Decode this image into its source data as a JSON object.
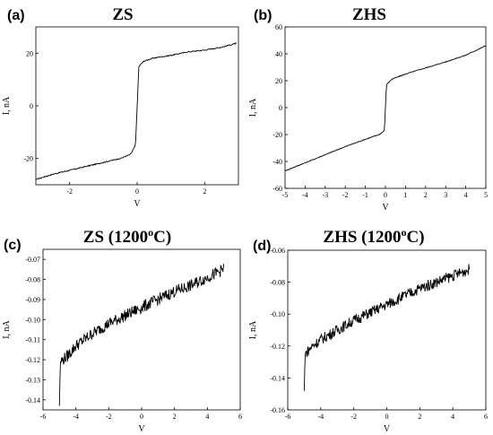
{
  "figure": {
    "panels": [
      {
        "label": "(a)",
        "title": "ZS",
        "title_sup": "",
        "title_tail": ""
      },
      {
        "label": "(b)",
        "title": "ZHS",
        "title_sup": "",
        "title_tail": ""
      },
      {
        "label": "(c)",
        "title": "ZS (1200",
        "title_sup": "o",
        "title_tail": "C)"
      },
      {
        "label": "(d)",
        "title": "ZHS (1200",
        "title_sup": "o",
        "title_tail": "C)"
      }
    ]
  },
  "chart_data": [
    {
      "type": "line",
      "title": "ZS",
      "xlabel": "V",
      "ylabel": "I, nA",
      "xlim": [
        -3,
        3
      ],
      "ylim": [
        -30,
        30
      ],
      "xticks": [
        -2,
        0,
        2
      ],
      "yticks": [
        -20,
        0,
        20
      ],
      "grid": false,
      "series": [
        {
          "values": [
            [
              -3,
              -28
            ],
            [
              -2.5,
              -26
            ],
            [
              -2,
              -24.5
            ],
            [
              -1.5,
              -23
            ],
            [
              -1,
              -21.5
            ],
            [
              -0.5,
              -20
            ],
            [
              -0.2,
              -18.5
            ],
            [
              -0.05,
              -15
            ],
            [
              0,
              0
            ],
            [
              0.05,
              15
            ],
            [
              0.2,
              17
            ],
            [
              0.5,
              18.2
            ],
            [
              1,
              19.2
            ],
            [
              1.5,
              20.5
            ],
            [
              2,
              21.2
            ],
            [
              2.5,
              22.3
            ],
            [
              2.95,
              23.8
            ]
          ],
          "noise": 0.2
        }
      ]
    },
    {
      "type": "line",
      "title": "ZHS",
      "xlabel": "V",
      "ylabel": "I, nA",
      "xlim": [
        -5,
        5
      ],
      "ylim": [
        -60,
        60
      ],
      "xticks": [
        -5,
        -4,
        -3,
        -2,
        -1,
        0,
        1,
        2,
        3,
        4,
        5
      ],
      "yticks": [
        -60,
        -40,
        -20,
        0,
        20,
        40,
        60
      ],
      "grid": false,
      "series": [
        {
          "values": [
            [
              -5,
              -47
            ],
            [
              -4,
              -41
            ],
            [
              -3,
              -35
            ],
            [
              -2,
              -29
            ],
            [
              -1,
              -23.5
            ],
            [
              -0.3,
              -20
            ],
            [
              -0.05,
              -17
            ],
            [
              0,
              0
            ],
            [
              0.05,
              17
            ],
            [
              0.3,
              21
            ],
            [
              1,
              25
            ],
            [
              2,
              29.5
            ],
            [
              3,
              34
            ],
            [
              4,
              39
            ],
            [
              5,
              46
            ]
          ],
          "noise": 0.3
        }
      ]
    },
    {
      "type": "line",
      "title": "ZS (1200oC)",
      "xlabel": "V",
      "ylabel": "I, nA",
      "xlim": [
        -6,
        6
      ],
      "ylim": [
        -0.145,
        -0.065
      ],
      "xticks": [
        -6,
        -4,
        -2,
        0,
        2,
        4,
        6
      ],
      "yticks": [
        -0.14,
        -0.13,
        -0.12,
        -0.11,
        -0.1,
        -0.09,
        -0.08,
        -0.07
      ],
      "ytick_labels": [
        "-0.14",
        "-0.13",
        "-0.12",
        "-0.11",
        "-0.10",
        "-0.09",
        "-0.08",
        "-0.07"
      ],
      "grid": false,
      "series": [
        {
          "values": [
            [
              -5,
              -0.143
            ],
            [
              -4.95,
              -0.121
            ],
            [
              -4.5,
              -0.118
            ],
            [
              -4,
              -0.113
            ],
            [
              -3,
              -0.107
            ],
            [
              -2,
              -0.102
            ],
            [
              -1,
              -0.098
            ],
            [
              0,
              -0.094
            ],
            [
              1,
              -0.09
            ],
            [
              2,
              -0.086
            ],
            [
              3,
              -0.083
            ],
            [
              4,
              -0.079
            ],
            [
              5,
              -0.075
            ]
          ],
          "noise": 0.003
        }
      ]
    },
    {
      "type": "line",
      "title": "ZHS (1200oC)",
      "xlabel": "V",
      "ylabel": "I, nA",
      "xlim": [
        -6,
        6
      ],
      "ylim": [
        -0.16,
        -0.06
      ],
      "xticks": [
        -6,
        -4,
        -2,
        0,
        2,
        4,
        6
      ],
      "yticks": [
        -0.16,
        -0.14,
        -0.12,
        -0.1,
        -0.08,
        -0.06
      ],
      "ytick_labels": [
        "-0.16",
        "-0.14",
        "-0.12",
        "-0.10",
        "-0.08",
        "-0.06"
      ],
      "grid": false,
      "series": [
        {
          "values": [
            [
              -5,
              -0.148
            ],
            [
              -4.95,
              -0.125
            ],
            [
              -4.5,
              -0.12
            ],
            [
              -4,
              -0.116
            ],
            [
              -3,
              -0.11
            ],
            [
              -2,
              -0.104
            ],
            [
              -1,
              -0.099
            ],
            [
              0,
              -0.094
            ],
            [
              1,
              -0.089
            ],
            [
              2,
              -0.084
            ],
            [
              3,
              -0.08
            ],
            [
              4,
              -0.076
            ],
            [
              5,
              -0.072
            ]
          ],
          "noise": 0.0035
        }
      ]
    }
  ]
}
